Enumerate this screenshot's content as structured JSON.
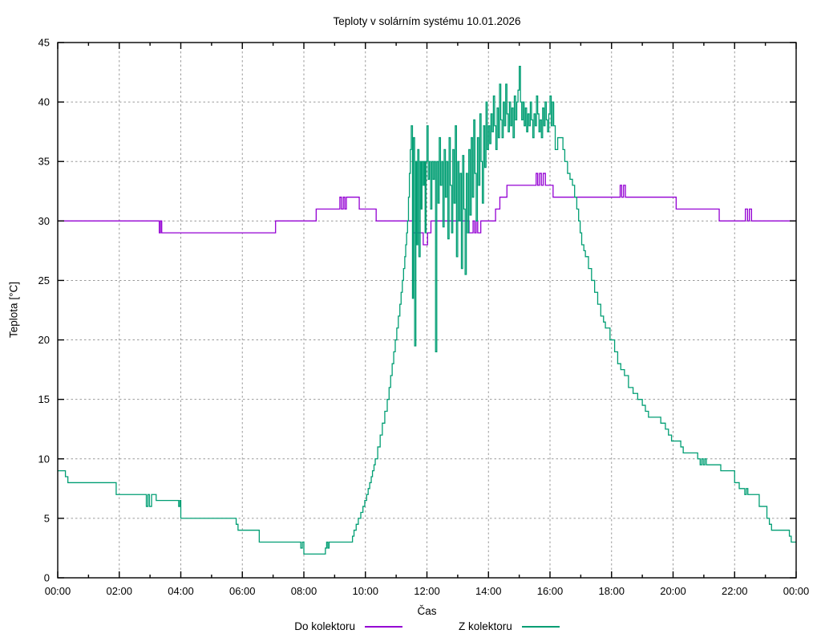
{
  "chart_data": {
    "type": "line",
    "title": "Teploty v solárním systému 10.01.2026",
    "xlabel": "Čas",
    "ylabel": "Teplota [°C]",
    "x_unit": "hours",
    "xlim": [
      0,
      24
    ],
    "ylim": [
      0,
      45
    ],
    "grid": true,
    "legend_position": "bottom-center",
    "background_color": "#ffffff",
    "grid_color": "#9a9a9a",
    "axis_color": "#000000",
    "x_tick_step_hours": 2,
    "x_minor_tick_step_hours": 1,
    "x_ticklabels": [
      "00:00",
      "02:00",
      "04:00",
      "06:00",
      "08:00",
      "10:00",
      "12:00",
      "14:00",
      "16:00",
      "18:00",
      "20:00",
      "22:00",
      "00:00"
    ],
    "y_ticks": [
      0,
      5,
      10,
      15,
      20,
      25,
      30,
      35,
      40,
      45
    ],
    "series": [
      {
        "name": "Do kolektoru",
        "color": "#9400d3",
        "points": [
          [
            0,
            30
          ],
          [
            3.3,
            29
          ],
          [
            3.34,
            30
          ],
          [
            3.38,
            29
          ],
          [
            7.08,
            30
          ],
          [
            8.4,
            31
          ],
          [
            9.17,
            32
          ],
          [
            9.22,
            31
          ],
          [
            9.28,
            32
          ],
          [
            9.33,
            31
          ],
          [
            9.38,
            32
          ],
          [
            9.8,
            31
          ],
          [
            10.35,
            30
          ],
          [
            11.55,
            29
          ],
          [
            11.88,
            28
          ],
          [
            12.02,
            29
          ],
          [
            12.13,
            30
          ],
          [
            13.37,
            29
          ],
          [
            13.5,
            30
          ],
          [
            13.55,
            29
          ],
          [
            13.6,
            30
          ],
          [
            13.65,
            29
          ],
          [
            13.75,
            30
          ],
          [
            14.23,
            31
          ],
          [
            14.37,
            32
          ],
          [
            14.6,
            33
          ],
          [
            15.55,
            34
          ],
          [
            15.6,
            33
          ],
          [
            15.66,
            34
          ],
          [
            15.72,
            33
          ],
          [
            15.78,
            34
          ],
          [
            15.85,
            33
          ],
          [
            16.1,
            32
          ],
          [
            18.28,
            33
          ],
          [
            18.33,
            32
          ],
          [
            18.39,
            33
          ],
          [
            18.45,
            32
          ],
          [
            20.1,
            31
          ],
          [
            21.5,
            30
          ],
          [
            22.35,
            31
          ],
          [
            22.42,
            30
          ],
          [
            22.48,
            31
          ],
          [
            22.55,
            30
          ],
          [
            24.0,
            30
          ]
        ]
      },
      {
        "name": "Z kolektoru",
        "color": "#009e73",
        "points": [
          [
            0,
            9
          ],
          [
            0.25,
            8.5
          ],
          [
            0.33,
            8
          ],
          [
            1.9,
            7
          ],
          [
            2.88,
            6
          ],
          [
            2.93,
            7
          ],
          [
            2.98,
            6
          ],
          [
            3.05,
            7
          ],
          [
            3.2,
            6.5
          ],
          [
            3.93,
            6
          ],
          [
            3.97,
            6.5
          ],
          [
            4.0,
            5
          ],
          [
            5.8,
            4.5
          ],
          [
            5.86,
            4
          ],
          [
            6.55,
            3
          ],
          [
            7.9,
            2.5
          ],
          [
            7.95,
            3
          ],
          [
            8.0,
            2
          ],
          [
            8.7,
            2.5
          ],
          [
            8.74,
            3
          ],
          [
            8.78,
            2.5
          ],
          [
            8.82,
            3
          ],
          [
            9.58,
            3.5
          ],
          [
            9.63,
            4
          ],
          [
            9.7,
            4.5
          ],
          [
            9.77,
            5
          ],
          [
            9.85,
            5.5
          ],
          [
            9.92,
            6
          ],
          [
            9.98,
            6.5
          ],
          [
            10.04,
            7
          ],
          [
            10.09,
            7.5
          ],
          [
            10.14,
            8
          ],
          [
            10.19,
            8.5
          ],
          [
            10.23,
            9
          ],
          [
            10.28,
            9.5
          ],
          [
            10.32,
            10
          ],
          [
            10.4,
            11
          ],
          [
            10.48,
            12
          ],
          [
            10.55,
            13
          ],
          [
            10.63,
            14
          ],
          [
            10.71,
            15
          ],
          [
            10.77,
            16
          ],
          [
            10.82,
            17
          ],
          [
            10.87,
            18
          ],
          [
            10.92,
            19
          ],
          [
            10.97,
            20
          ],
          [
            11.02,
            21
          ],
          [
            11.07,
            22
          ],
          [
            11.12,
            23
          ],
          [
            11.16,
            24
          ],
          [
            11.2,
            25
          ],
          [
            11.24,
            26
          ],
          [
            11.28,
            27
          ],
          [
            11.31,
            28
          ],
          [
            11.34,
            29
          ],
          [
            11.37,
            30
          ],
          [
            11.4,
            32
          ],
          [
            11.43,
            34
          ],
          [
            11.46,
            36
          ],
          [
            11.49,
            38
          ],
          [
            11.53,
            23.5
          ],
          [
            11.56,
            37
          ],
          [
            11.6,
            19.5
          ],
          [
            11.64,
            35
          ],
          [
            11.67,
            28
          ],
          [
            11.7,
            36
          ],
          [
            11.74,
            27
          ],
          [
            11.78,
            35
          ],
          [
            11.81,
            31
          ],
          [
            11.84,
            35
          ],
          [
            11.88,
            33
          ],
          [
            11.91,
            35
          ],
          [
            11.94,
            29
          ],
          [
            11.97,
            35
          ],
          [
            12.0,
            38
          ],
          [
            12.04,
            33.5
          ],
          [
            12.08,
            35
          ],
          [
            12.12,
            31
          ],
          [
            12.16,
            35
          ],
          [
            12.2,
            33.5
          ],
          [
            12.24,
            35
          ],
          [
            12.28,
            19
          ],
          [
            12.32,
            35
          ],
          [
            12.36,
            31.5
          ],
          [
            12.4,
            37
          ],
          [
            12.44,
            33
          ],
          [
            12.48,
            35
          ],
          [
            12.52,
            29.5
          ],
          [
            12.56,
            36
          ],
          [
            12.6,
            32
          ],
          [
            12.64,
            35
          ],
          [
            12.68,
            28.5
          ],
          [
            12.72,
            37
          ],
          [
            12.76,
            33
          ],
          [
            12.8,
            29
          ],
          [
            12.84,
            36
          ],
          [
            12.88,
            31.5
          ],
          [
            12.92,
            38
          ],
          [
            12.96,
            27
          ],
          [
            13.0,
            35
          ],
          [
            13.04,
            30
          ],
          [
            13.08,
            34
          ],
          [
            13.12,
            26
          ],
          [
            13.16,
            35.5
          ],
          [
            13.2,
            31
          ],
          [
            13.24,
            25.5
          ],
          [
            13.28,
            34
          ],
          [
            13.32,
            29
          ],
          [
            13.36,
            36
          ],
          [
            13.4,
            30.5
          ],
          [
            13.44,
            37
          ],
          [
            13.48,
            32
          ],
          [
            13.52,
            38.5
          ],
          [
            13.56,
            34
          ],
          [
            13.6,
            30
          ],
          [
            13.64,
            37
          ],
          [
            13.68,
            33
          ],
          [
            13.72,
            39
          ],
          [
            13.76,
            35
          ],
          [
            13.8,
            31.5
          ],
          [
            13.84,
            38
          ],
          [
            13.88,
            34.5
          ],
          [
            13.92,
            40
          ],
          [
            13.96,
            36
          ],
          [
            14.0,
            38
          ],
          [
            14.04,
            36.5
          ],
          [
            14.08,
            39
          ],
          [
            14.12,
            37.5
          ],
          [
            14.16,
            40.5
          ],
          [
            14.2,
            38
          ],
          [
            14.24,
            36
          ],
          [
            14.28,
            39.5
          ],
          [
            14.32,
            37
          ],
          [
            14.36,
            41.5
          ],
          [
            14.4,
            38.5
          ],
          [
            14.44,
            37
          ],
          [
            14.48,
            40
          ],
          [
            14.52,
            38
          ],
          [
            14.56,
            41.5
          ],
          [
            14.6,
            39
          ],
          [
            14.64,
            37.5
          ],
          [
            14.68,
            40
          ],
          [
            14.72,
            38
          ],
          [
            14.76,
            39.5
          ],
          [
            14.8,
            37
          ],
          [
            14.84,
            40.5
          ],
          [
            14.88,
            38.5
          ],
          [
            14.92,
            40
          ],
          [
            14.96,
            41
          ],
          [
            15.0,
            43
          ],
          [
            15.04,
            40
          ],
          [
            15.08,
            38.5
          ],
          [
            15.12,
            40
          ],
          [
            15.16,
            38
          ],
          [
            15.2,
            39.5
          ],
          [
            15.24,
            37.5
          ],
          [
            15.28,
            39
          ],
          [
            15.32,
            38
          ],
          [
            15.36,
            40
          ],
          [
            15.4,
            38.5
          ],
          [
            15.44,
            37
          ],
          [
            15.48,
            39
          ],
          [
            15.52,
            38
          ],
          [
            15.56,
            40.5
          ],
          [
            15.6,
            39
          ],
          [
            15.64,
            37.5
          ],
          [
            15.68,
            38.5
          ],
          [
            15.72,
            37
          ],
          [
            15.76,
            39.5
          ],
          [
            15.8,
            38
          ],
          [
            15.84,
            40
          ],
          [
            15.88,
            38.5
          ],
          [
            15.92,
            37.5
          ],
          [
            15.96,
            39
          ],
          [
            16.0,
            40.5
          ],
          [
            16.04,
            38
          ],
          [
            16.08,
            40
          ],
          [
            16.12,
            38
          ],
          [
            16.17,
            36
          ],
          [
            16.25,
            37
          ],
          [
            16.42,
            36
          ],
          [
            16.48,
            35
          ],
          [
            16.57,
            34
          ],
          [
            16.65,
            33.5
          ],
          [
            16.73,
            33
          ],
          [
            16.8,
            32
          ],
          [
            16.87,
            31
          ],
          [
            16.93,
            30
          ],
          [
            16.98,
            29
          ],
          [
            17.03,
            28
          ],
          [
            17.1,
            27.5
          ],
          [
            17.15,
            27
          ],
          [
            17.25,
            26
          ],
          [
            17.35,
            25
          ],
          [
            17.45,
            24
          ],
          [
            17.55,
            23
          ],
          [
            17.65,
            22
          ],
          [
            17.74,
            21.5
          ],
          [
            17.8,
            21
          ],
          [
            17.95,
            20
          ],
          [
            18.1,
            19
          ],
          [
            18.2,
            18
          ],
          [
            18.3,
            17.5
          ],
          [
            18.42,
            17
          ],
          [
            18.55,
            16
          ],
          [
            18.7,
            15.5
          ],
          [
            18.85,
            15
          ],
          [
            19.0,
            14.5
          ],
          [
            19.1,
            14
          ],
          [
            19.2,
            13.5
          ],
          [
            19.6,
            13
          ],
          [
            19.75,
            12.5
          ],
          [
            19.85,
            12
          ],
          [
            19.95,
            11.5
          ],
          [
            20.25,
            11
          ],
          [
            20.33,
            10.5
          ],
          [
            20.8,
            10
          ],
          [
            20.88,
            9.5
          ],
          [
            20.93,
            10
          ],
          [
            20.98,
            9.5
          ],
          [
            21.03,
            10
          ],
          [
            21.08,
            9.5
          ],
          [
            21.55,
            9
          ],
          [
            22.0,
            8
          ],
          [
            22.15,
            7.5
          ],
          [
            22.33,
            7
          ],
          [
            22.38,
            7.5
          ],
          [
            22.43,
            7
          ],
          [
            22.8,
            6
          ],
          [
            23.05,
            5
          ],
          [
            23.13,
            4.5
          ],
          [
            23.2,
            4
          ],
          [
            23.78,
            3.5
          ],
          [
            23.84,
            3
          ],
          [
            24.0,
            3
          ]
        ]
      }
    ]
  }
}
